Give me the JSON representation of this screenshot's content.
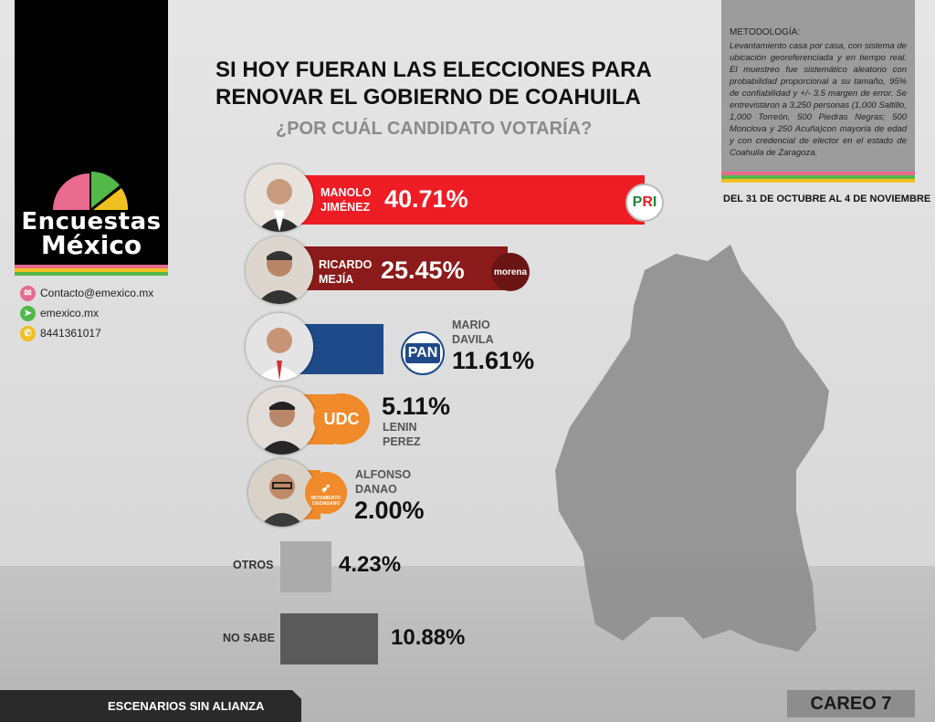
{
  "brand": {
    "line1": "Encuestas",
    "line2": "México"
  },
  "contact": [
    {
      "icon": "mail-icon",
      "text": "Contacto@emexico.mx",
      "color": "#e86a8f"
    },
    {
      "icon": "cursor-icon",
      "text": "emexico.mx",
      "color": "#53b84a"
    },
    {
      "icon": "phone-icon",
      "text": "8441361017",
      "color": "#f0c020"
    }
  ],
  "header": {
    "title_line1": "SI HOY FUERAN LAS ELECCIONES PARA",
    "title_line2": "RENOVAR EL GOBIERNO DE COAHUILA",
    "subtitle": "¿POR CUÁL CANDIDATO VOTARÍA?"
  },
  "methodology": {
    "title": "METODOLOGÍA:",
    "body": "Levantamiento casa por casa, con sistema de ubicación georeferenciada y en tiempo real. El muestreo fue sistemático aleatorio con probabilidad proporcional a su tamaño, 95% de confiabilidad y +/- 3.5 margen de error. Se entrevistaron a 3,250 personas (1,000 Saltillo, 1,000 Torreón, 500 Piedras Negras; 500 Monclova y 250 Acuña)con mayoría de edad y con credencial de elector en el estado de Coahuila de Zaragoza.",
    "dates": "DEL 31 DE OCTUBRE AL 4 DE NOVIEMBRE"
  },
  "footer": {
    "scenario": "ESCENARIOS SIN ALIANZA",
    "careo": "CAREO 7"
  },
  "colors": {
    "pri": "#ee1c24",
    "morena": "#8b1a1a",
    "pan": "#1e4a8a",
    "udc": "#f08a2a",
    "mc": "#f08a2a",
    "otros": "#ababab",
    "no_sabe": "#5a5a5a"
  },
  "chart_data": {
    "type": "bar",
    "orientation": "horizontal",
    "title": "SI HOY FUERAN LAS ELECCIONES PARA RENOVAR EL GOBIERNO DE COAHUILA",
    "subtitle": "¿POR CUÁL CANDIDATO VOTARÍA?",
    "unit": "%",
    "categories": [
      "MANOLO JIMÉNEZ",
      "RICARDO MEJÍA",
      "MARIO DAVILA",
      "LENIN PEREZ",
      "ALFONSO DANAO",
      "OTROS",
      "NO SABE"
    ],
    "values": [
      40.71,
      25.45,
      11.61,
      5.11,
      2.0,
      4.23,
      10.88
    ],
    "labels": [
      "40.71%",
      "25.45%",
      "11.61%",
      "5.11%",
      "2.00%",
      "4.23%",
      "10.88%"
    ],
    "parties": [
      "PRI",
      "morena",
      "PAN",
      "UDC",
      "MOVIMIENTO CIUDADANO",
      "",
      ""
    ],
    "bar_colors": [
      "#ee1c24",
      "#8b1a1a",
      "#1e4a8a",
      "#f08a2a",
      "#f08a2a",
      "#ababab",
      "#5a5a5a"
    ],
    "candidates": [
      {
        "first": "MANOLO",
        "last": "JIMÉNEZ"
      },
      {
        "first": "RICARDO",
        "last": "MEJÍA"
      },
      {
        "first": "MARIO",
        "last": "DAVILA"
      },
      {
        "first": "LENIN",
        "last": "PEREZ"
      },
      {
        "first": "ALFONSO",
        "last": "DANAO"
      }
    ],
    "others_label": "OTROS",
    "unknown_label": "NO SABE"
  }
}
